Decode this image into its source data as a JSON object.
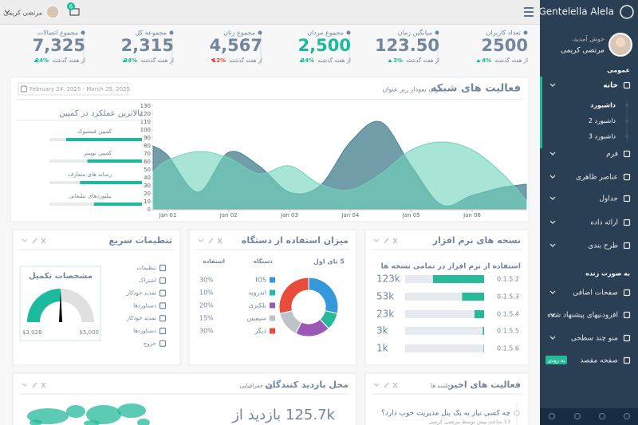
{
  "sidebar": {
    "brand": "Gentelella Alela!",
    "welcome": "خوش آمدید،",
    "user": "مرتضی کریمی",
    "section_general": "عمومی",
    "home": "خانه",
    "submenu": [
      "داشبورد",
      "داشبورد 2",
      "داشبورد 3"
    ],
    "menu": [
      "فرم",
      "عناصر ظاهری",
      "جداول",
      "ارائه داده",
      "طرح بندی"
    ],
    "section_live": "به صورت زنده",
    "live_menu": [
      "صفحات اضافی",
      "افزودنیهای پیشنهاد شده",
      "منو چند سطحی",
      "صفحه مقصد"
    ],
    "badge": "به زودی"
  },
  "topbar": {
    "user": "مرتضی کریمی",
    "mail_count": "6"
  },
  "stats": [
    {
      "label": "تعداد کاربران",
      "value": "2500",
      "change": "4%",
      "note": "از هفته گذشته",
      "trend": "up",
      "highlight": false
    },
    {
      "label": "میانگین زمان",
      "value": "123.50",
      "change": "3%",
      "note": "از هفته گذشته",
      "trend": "up",
      "highlight": false
    },
    {
      "label": "مجموع مردان",
      "value": "2,500",
      "change": "34%",
      "note": "از هفته گذشته",
      "trend": "up",
      "highlight": true
    },
    {
      "label": "مجموع زنان",
      "value": "4,567",
      "change": "12%",
      "note": "از هفته گذشته",
      "trend": "down",
      "highlight": false
    },
    {
      "label": "مجموعه کل",
      "value": "2,315",
      "change": "34%",
      "note": "از هفته گذشته",
      "trend": "up",
      "highlight": false
    },
    {
      "label": "مجموع اتصالات",
      "value": "7,325",
      "change": "34%",
      "note": "از هفته گذشته",
      "trend": "up",
      "highlight": false
    }
  ],
  "date_range": "February 24, 2025 - March 25, 2025",
  "quick_settings": {
    "title": "تنظیمات سریع",
    "items": [
      "تنظیمات",
      "اشتراک",
      "تمدید خودکار",
      "دستاوردها",
      "تمدید خودکار",
      "دستاوردها",
      "خروج"
    ]
  },
  "recent_activity": {
    "title": "فعالیت های اخیر",
    "subtitle": "جلسه ها",
    "item": "چه کسی نیاز به یک پنل مدیریت خوب دارد؟",
    "meta": "13 ساعت پیش توسط مرتضی کریمی"
  },
  "visitors": {
    "title": "محل بازدید کنندگان",
    "subtitle": "ارائه جغرافیایی",
    "count": "125.7k بازدید از"
  },
  "chart_data": [
    {
      "type": "area",
      "title": "فعالیت های شبکه",
      "subtitle": "عنوان نمودار زیر عنوان",
      "x": [
        0.76,
        1,
        1.5,
        2,
        2.5,
        3,
        3.5,
        4,
        4.5,
        5,
        5.5,
        6,
        6.5,
        6.89
      ],
      "xlim": [
        0.76,
        6.89
      ],
      "xticks": [
        {
          "value": 1,
          "label": "Jan 01"
        },
        {
          "value": 2,
          "label": "Jan 02"
        },
        {
          "value": 3,
          "label": "Jan 03"
        },
        {
          "value": 4,
          "label": "Jan 04"
        },
        {
          "value": 5,
          "label": "Jan 05"
        },
        {
          "value": 6,
          "label": "Jan 06"
        }
      ],
      "ylim": [
        0,
        130
      ],
      "yticks": [
        0,
        10,
        20,
        30,
        40,
        50,
        60,
        70,
        80,
        90,
        100,
        110,
        120,
        130
      ],
      "grid": false,
      "series": [
        {
          "color": "#4E8592",
          "values": [
            80,
            68,
            22,
            72,
            55,
            22,
            30,
            85,
            110,
            55,
            6,
            18,
            28,
            32
          ]
        },
        {
          "color": "#6FD3BB",
          "values": [
            48,
            62,
            73,
            65,
            45,
            55,
            32,
            25,
            45,
            75,
            85,
            75,
            45,
            12
          ]
        }
      ]
    },
    {
      "type": "bar",
      "title": "بالاترین عملکرد در کمپین",
      "categories": [
        "کمپین فیسبوک",
        "کمپین توییتر",
        "رسانه های متعارف",
        "بیلبوردهای تبلیغاتی"
      ],
      "values": [
        82,
        59,
        67,
        52
      ],
      "xlim": [
        0,
        100
      ],
      "color": "#1ABB9C"
    },
    {
      "type": "gauge",
      "title": "مشخصات تکمیل",
      "value": 4014,
      "ylim": [
        3028,
        5000
      ],
      "yticks": [
        {
          "value": 3028,
          "label": "$3,028"
        },
        {
          "value": 5000,
          "label": "$5,000"
        }
      ],
      "color": "#1ABB9C"
    },
    {
      "type": "pie",
      "title": "میزان استفاده از دستگاه",
      "top_label": "5 تای اول",
      "column_headers": [
        "دستگاه",
        "استفاده"
      ],
      "categories": [
        "IOS",
        "اندروید",
        "بلکبری",
        "سیمبین",
        "دیگر"
      ],
      "values": [
        30,
        10,
        20,
        15,
        30
      ],
      "value_labels": [
        "30%",
        "10%",
        "20%",
        "15%",
        "30%"
      ],
      "colors": [
        "#3498DB",
        "#26B99A",
        "#9B59B6",
        "#BDC3C7",
        "#E74C3C"
      ]
    },
    {
      "type": "bar",
      "title": "نسخه های نرم افزار",
      "subtitle": "استفاده از نرم افزار در تمامی نسخه ها",
      "categories": [
        "0.1.5.2",
        "0.1.5.3",
        "0.1.5.4",
        "0.1.5.5",
        "0.1.5.6"
      ],
      "values": [
        123000,
        53000,
        23000,
        3000,
        1000
      ],
      "value_labels": [
        "123k",
        "53k",
        "23k",
        "3k",
        "1k"
      ],
      "xlim": [
        0,
        190000
      ],
      "color": "#26B99A"
    }
  ]
}
